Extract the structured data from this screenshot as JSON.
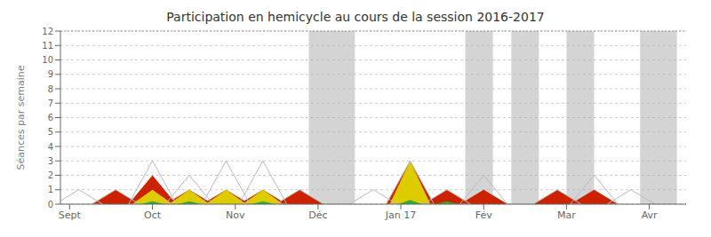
{
  "chart_data": {
    "type": "area",
    "title": "Participation en hemicycle au cours de la session 2016-2017",
    "ylabel": "Séances par semaine",
    "x": [
      1,
      3,
      5,
      7,
      9,
      11,
      13,
      17,
      19,
      21,
      23,
      27,
      29,
      31
    ],
    "series": [
      {
        "type": "line",
        "color": "#bbbbbb",
        "values": [
          1,
          1,
          3,
          2,
          3,
          3,
          1,
          1,
          3,
          1,
          2,
          1,
          2,
          1
        ]
      },
      {
        "type": "area",
        "color": "#cc2200",
        "values": [
          0,
          1,
          2,
          1,
          1,
          1,
          1,
          0,
          3,
          1,
          1,
          1,
          1,
          0
        ]
      },
      {
        "type": "area",
        "color": "#ddcc00",
        "values": [
          0,
          0,
          1,
          1,
          1,
          1,
          0,
          0,
          3,
          0,
          0,
          0,
          0,
          0
        ]
      },
      {
        "type": "area",
        "color": "#33aa33",
        "values": [
          0,
          0,
          0.2,
          0.2,
          0,
          0.2,
          0,
          0,
          0.3,
          0.2,
          0,
          0,
          0,
          0
        ]
      }
    ],
    "shaded_ranges": [
      [
        13.5,
        16.0
      ],
      [
        22.0,
        23.5
      ],
      [
        24.5,
        26.0
      ],
      [
        27.5,
        29.0
      ],
      [
        31.5,
        33.5
      ]
    ],
    "xlim": [
      0,
      34
    ],
    "xticks": [
      {
        "value": 0.5,
        "label": "Sept"
      },
      {
        "value": 5,
        "label": "Oct"
      },
      {
        "value": 9.5,
        "label": "Nov"
      },
      {
        "value": 14,
        "label": "Déc"
      },
      {
        "value": 18.5,
        "label": "Jan 17"
      },
      {
        "value": 23,
        "label": "Fév"
      },
      {
        "value": 27.5,
        "label": "Mar"
      },
      {
        "value": 32,
        "label": "Avr"
      }
    ],
    "ylim": [
      0,
      12
    ],
    "yticks": [
      0,
      1,
      2,
      3,
      4,
      5,
      6,
      7,
      8,
      9,
      10,
      11,
      12
    ],
    "grid": true
  }
}
